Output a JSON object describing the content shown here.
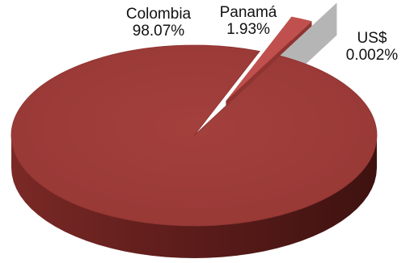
{
  "chart_data": {
    "type": "pie",
    "title": "",
    "series": [
      {
        "name": "",
        "labels": [
          "Colombia",
          "Panamá",
          "US$"
        ],
        "values": [
          98.07,
          1.93,
          0.002
        ],
        "value_labels": [
          "98.07%",
          "1.93%",
          "0.002%"
        ]
      }
    ],
    "style": "3d-exploded",
    "legend": "none",
    "colors": {
      "top": "#9f3c3a",
      "side_dark": "#5c1c1a",
      "side_light": "#8a2f2c",
      "explode_top": "#c0504d",
      "explode_side": "#7b2a27",
      "thin_slice": "#9a9a9a"
    }
  }
}
